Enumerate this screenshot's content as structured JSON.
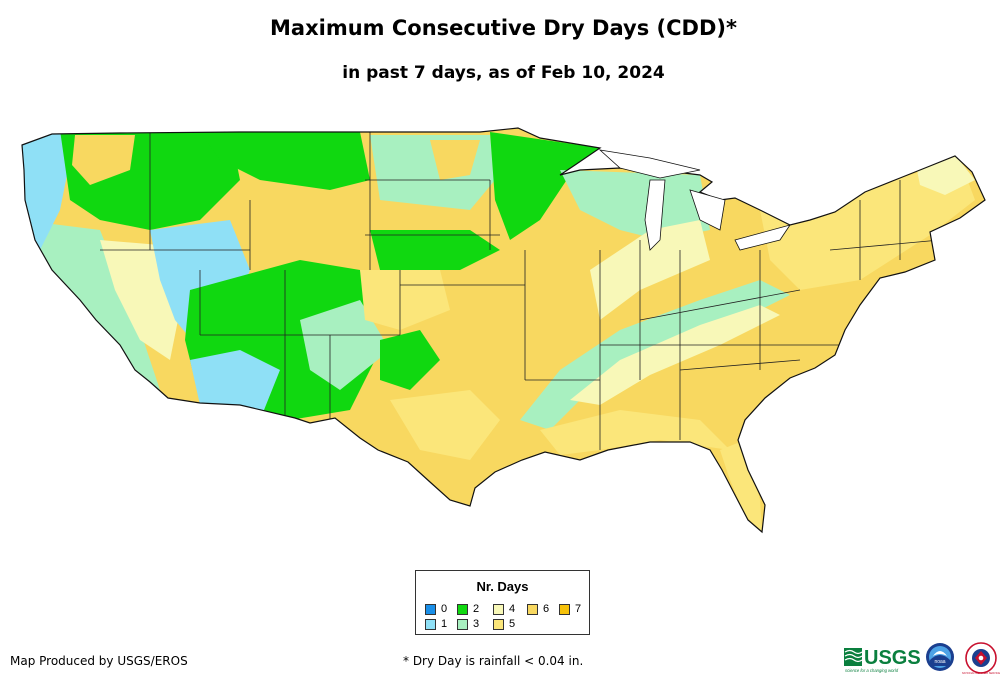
{
  "title": "Maximum Consecutive Dry Days (CDD)*",
  "subtitle": "in past 7 days, as of Feb 10, 2024",
  "legend": {
    "title": "Nr. Days",
    "items": [
      {
        "label": "0",
        "color": "#1a8fe8"
      },
      {
        "label": "1",
        "color": "#8fe0f6"
      },
      {
        "label": "2",
        "color": "#10d810"
      },
      {
        "label": "3",
        "color": "#a8f0c0"
      },
      {
        "label": "4",
        "color": "#f8f8b8"
      },
      {
        "label": "5",
        "color": "#fbe67a"
      },
      {
        "label": "6",
        "color": "#f8d860"
      },
      {
        "label": "7",
        "color": "#f6c20a"
      }
    ]
  },
  "footer": {
    "credit": "Map Produced by USGS/EROS",
    "note": "* Dry Day is rainfall < 0.04 in."
  },
  "logos": {
    "usgs": "USGS",
    "usgs_tagline": "science for a changing world",
    "noaa": "noaa",
    "nws": "NATIONAL WEATHER SERVICE"
  }
}
